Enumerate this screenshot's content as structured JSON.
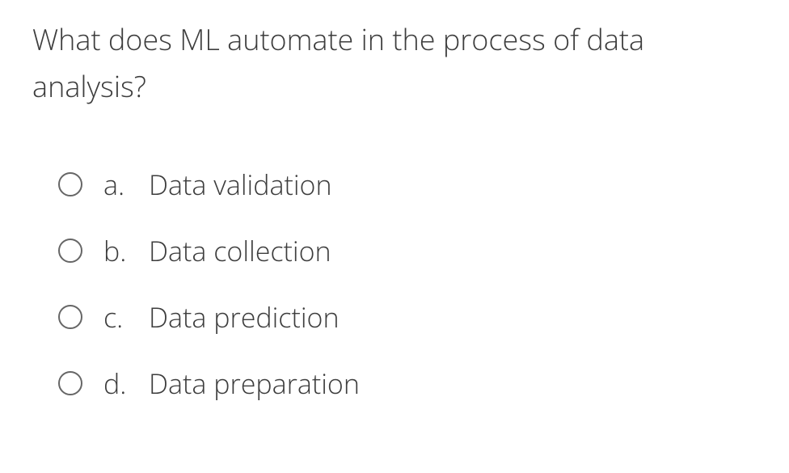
{
  "question": {
    "text": "What does ML automate in the process of data analysis?",
    "options": [
      {
        "letter": "a.",
        "label": "Data validation"
      },
      {
        "letter": "b.",
        "label": "Data collection"
      },
      {
        "letter": "c.",
        "label": "Data prediction"
      },
      {
        "letter": "d.",
        "label": "Data preparation"
      }
    ]
  },
  "styling": {
    "text_color": "#3d3d3d",
    "radio_border_color": "#666666",
    "background_color": "#ffffff",
    "question_fontsize": 36,
    "option_fontsize": 34,
    "font_weight": 300
  }
}
